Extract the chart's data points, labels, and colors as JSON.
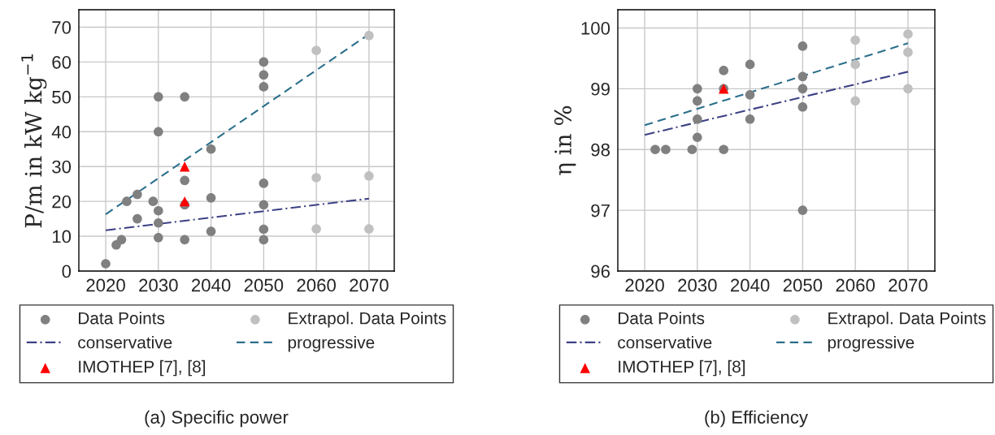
{
  "chart_data": [
    {
      "type": "scatter",
      "ylabel": "P/m in kW kg$^{−1}$",
      "xlim": [
        2014.9,
        2074.8
      ],
      "ylim": [
        0,
        75
      ],
      "xticks": [
        2020,
        2030,
        2040,
        2050,
        2060,
        2070
      ],
      "yticks": [
        0,
        10,
        20,
        30,
        40,
        50,
        60,
        70
      ],
      "grid": true,
      "legend": "bottom",
      "annotations": [
        "(a) Specific power"
      ],
      "series": [
        {
          "name": "Data Points",
          "type": "scatter",
          "marker": "circle",
          "color": "#808080",
          "x": [
            2020,
            2022,
            2023,
            2024,
            2026,
            2026,
            2029,
            2030,
            2030,
            2030,
            2030,
            2030,
            2035,
            2035,
            2035,
            2035,
            2040,
            2040,
            2040,
            2050,
            2050,
            2050,
            2050,
            2050,
            2050,
            2050
          ],
          "values": [
            2.1,
            7.5,
            9,
            20,
            15,
            22,
            20,
            50,
            40,
            17.3,
            13.8,
            9.6,
            50,
            26,
            19,
            9,
            35,
            21,
            11.4,
            60,
            56.3,
            52.9,
            25.2,
            19,
            12,
            9
          ]
        },
        {
          "name": "Extrapol. Data Points",
          "type": "scatter",
          "marker": "circle",
          "color": "#c0c0c0",
          "x": [
            2060,
            2060,
            2060,
            2070,
            2070,
            2070
          ],
          "values": [
            63.3,
            26.8,
            12.1,
            67.6,
            27.3,
            12.1
          ]
        },
        {
          "name": "conservative",
          "type": "line",
          "line_style": "dashdot",
          "color": "#3d4185",
          "x": [
            2020,
            2070
          ],
          "values": [
            11.7,
            20.8
          ]
        },
        {
          "name": "progressive",
          "type": "line",
          "line_style": "dashed",
          "color": "#2b6f8c",
          "x": [
            2020,
            2070
          ],
          "values": [
            16.3,
            68
          ]
        },
        {
          "name": "IMOTHEP [7], [8]",
          "type": "scatter",
          "marker": "triangle",
          "color": "#ff0000",
          "x": [
            2035,
            2035
          ],
          "values": [
            30,
            20
          ]
        }
      ]
    },
    {
      "type": "scatter",
      "ylabel": "η in %",
      "xlim": [
        2014.9,
        2075.1
      ],
      "ylim": [
        96,
        100.3
      ],
      "xticks": [
        2020,
        2030,
        2040,
        2050,
        2060,
        2070
      ],
      "yticks": [
        96,
        97,
        98,
        99,
        100
      ],
      "grid": true,
      "legend": "bottom",
      "annotations": [
        "(b) Efficiency"
      ],
      "series": [
        {
          "name": "Data Points",
          "type": "scatter",
          "marker": "circle",
          "color": "#808080",
          "x": [
            2022,
            2024,
            2029,
            2030,
            2030,
            2030,
            2030,
            2035,
            2035,
            2035,
            2040,
            2040,
            2040,
            2050,
            2050,
            2050,
            2050,
            2050
          ],
          "values": [
            98,
            98,
            98,
            99,
            98.8,
            98.5,
            98.2,
            99.3,
            99,
            98,
            99.4,
            98.9,
            98.5,
            99.7,
            99.2,
            99,
            98.7,
            97
          ]
        },
        {
          "name": "Extrapol. Data Points",
          "type": "scatter",
          "marker": "circle",
          "color": "#c0c0c0",
          "x": [
            2060,
            2060,
            2060,
            2070,
            2070,
            2070
          ],
          "values": [
            99.8,
            99.4,
            98.8,
            99.9,
            99.6,
            99
          ]
        },
        {
          "name": "conservative",
          "type": "line",
          "line_style": "dashdot",
          "color": "#3d4185",
          "x": [
            2020,
            2070
          ],
          "values": [
            98.24,
            99.28
          ]
        },
        {
          "name": "progressive",
          "type": "line",
          "line_style": "dashed",
          "color": "#2b6f8c",
          "x": [
            2020,
            2070
          ],
          "values": [
            98.4,
            99.75
          ]
        },
        {
          "name": "IMOTHEP [7], [8]",
          "type": "scatter",
          "marker": "triangle",
          "color": "#ff0000",
          "x": [
            2035
          ],
          "values": [
            99
          ]
        }
      ]
    }
  ]
}
